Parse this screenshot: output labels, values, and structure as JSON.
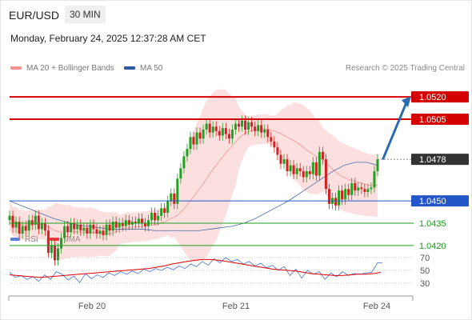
{
  "header": {
    "symbol": "EUR/USD",
    "interval": "30 MIN",
    "timestamp": "Monday, February 24, 2025 12:37:28 AM CET",
    "research": "Research © 2025 Trading Central"
  },
  "colors": {
    "resistance": "#d40000",
    "support": "#2356c8",
    "target": "#1a9e1a",
    "current": "#333333",
    "arrow": "#2a6bb0",
    "candle_up": "#22a022",
    "candle_down": "#d42020",
    "bollinger": "#f6a5a5",
    "ma20": "#f08080",
    "ma50": "#4a6aa8",
    "rsi": "#5b7fd6",
    "rsi_ma": "#e00000"
  },
  "chart_data": [
    {
      "type": "candlestick",
      "legend": [
        {
          "name": "MA 20 + Bollinger Bands",
          "color": "#f4938f"
        },
        {
          "name": "MA 50",
          "color": "#2c5aa0"
        }
      ],
      "x_ticks": [
        "Feb 20",
        "Feb 21",
        "Feb 24"
      ],
      "ylim": [
        1.04,
        1.054
      ],
      "levels": [
        {
          "value": 1.052,
          "label": "1.0520",
          "role": "resistance",
          "boxed": true
        },
        {
          "value": 1.0505,
          "label": "1.0505",
          "role": "resistance",
          "boxed": true
        },
        {
          "value": 1.0478,
          "label": "1.0478",
          "role": "current",
          "boxed": true
        },
        {
          "value": 1.045,
          "label": "1.0450",
          "role": "support",
          "boxed": true
        },
        {
          "value": 1.0435,
          "label": "1.0435",
          "role": "target",
          "boxed": false
        },
        {
          "value": 1.042,
          "label": "1.0420",
          "role": "target",
          "boxed": false
        }
      ],
      "projection": {
        "from": 1.0478,
        "to": 1.052
      },
      "closes": [
        1.044,
        1.0432,
        1.0436,
        1.0428,
        1.0433,
        1.043,
        1.0437,
        1.0434,
        1.044,
        1.0431,
        1.0435,
        1.043,
        1.0415,
        1.042,
        1.041,
        1.0418,
        1.0425,
        1.0433,
        1.0429,
        1.0435,
        1.0431,
        1.0434,
        1.043,
        1.0432,
        1.0428,
        1.0434,
        1.0431,
        1.0428,
        1.043,
        1.0427,
        1.0434,
        1.043,
        1.0436,
        1.0432,
        1.0435,
        1.0433,
        1.0437,
        1.0434,
        1.0436,
        1.0435,
        1.0438,
        1.0435,
        1.0433,
        1.0437,
        1.0442,
        1.0437,
        1.044,
        1.0445,
        1.0442,
        1.045,
        1.0455,
        1.0448,
        1.0465,
        1.0472,
        1.048,
        1.0485,
        1.0493,
        1.0488,
        1.0496,
        1.0492,
        1.0498,
        1.0502,
        1.0496,
        1.05,
        1.0497,
        1.0494,
        1.0499,
        1.0495,
        1.0492,
        1.0498,
        1.0502,
        1.05,
        1.0504,
        1.0498,
        1.0503,
        1.05,
        1.0497,
        1.0501,
        1.0496,
        1.0498,
        1.0493,
        1.049,
        1.0486,
        1.0481,
        1.0475,
        1.0478,
        1.047,
        1.0474,
        1.0468,
        1.0472,
        1.047,
        1.0466,
        1.047,
        1.0468,
        1.0476,
        1.0467,
        1.0483,
        1.0478,
        1.0458,
        1.0448,
        1.0452,
        1.0447,
        1.0457,
        1.0451,
        1.0458,
        1.0454,
        1.0462,
        1.0457,
        1.0459,
        1.0458,
        1.0456,
        1.0458,
        1.0459,
        1.047,
        1.0478
      ],
      "ma50": [
        1.045,
        1.0447,
        1.0444,
        1.0441,
        1.0438,
        1.0436,
        1.0434,
        1.0433,
        1.0432,
        1.0431,
        1.0431,
        1.0431,
        1.0431,
        1.043,
        1.043,
        1.043,
        1.043,
        1.043,
        1.0431,
        1.0432,
        1.0433,
        1.0435,
        1.0438,
        1.0442,
        1.0446,
        1.045,
        1.0455,
        1.046,
        1.0465,
        1.047,
        1.0474,
        1.0476,
        1.0476,
        1.0474
      ],
      "rsi": {
        "legend": [
          {
            "name": "RSI",
            "color": "#5b7fd6"
          },
          {
            "name": "9MA",
            "color": "#e00000"
          }
        ],
        "levels": [
          70,
          50,
          30
        ],
        "ylim": [
          20,
          75
        ],
        "values": [
          47,
          39,
          42,
          36,
          40,
          33,
          43,
          36,
          48,
          44,
          35,
          41,
          31,
          45,
          37,
          43,
          39,
          46,
          42,
          48,
          44,
          49,
          45,
          52,
          48,
          53,
          50,
          55,
          51,
          57,
          53,
          60,
          56,
          64,
          58,
          68,
          62,
          70,
          64,
          67,
          60,
          64,
          57,
          61,
          54,
          58,
          50,
          56,
          42,
          52,
          38,
          50,
          44,
          48,
          36,
          46,
          40,
          48,
          42,
          45,
          44,
          46,
          47,
          62
        ],
        "ma": [
          43,
          42,
          41,
          40,
          39,
          40,
          41,
          42,
          43,
          44,
          45,
          46,
          47,
          48,
          49,
          50,
          51,
          52,
          53,
          55,
          57,
          60,
          62,
          64,
          66,
          67,
          67,
          66,
          64,
          62,
          60,
          58,
          56,
          54,
          52,
          51,
          50,
          49,
          47,
          45,
          44,
          43,
          42,
          42,
          43,
          44,
          44,
          45,
          47
        ]
      }
    }
  ]
}
